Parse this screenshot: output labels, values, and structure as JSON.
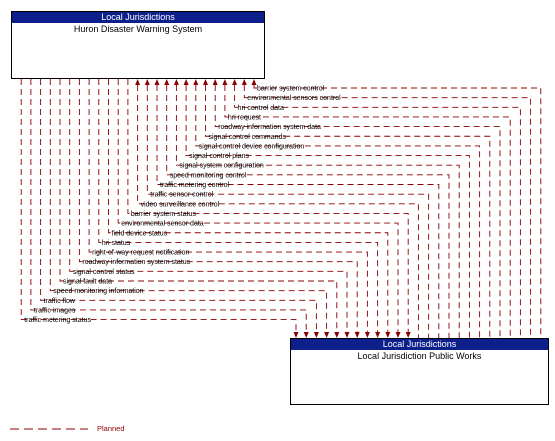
{
  "top_box": {
    "header": "Local Jurisdictions",
    "title": "Huron Disaster Warning System"
  },
  "bottom_box": {
    "header": "Local Jurisdictions",
    "title": "Local Jurisdiction Public Works"
  },
  "flows_to_top": [
    "barrier system control",
    "environmental sensors control",
    "hri control data",
    "hri request",
    "roadway information system data",
    "signal control commands",
    "signal control device configuration",
    "signal control plans",
    "signal system configuration",
    "speed monitoring control",
    "traffic metering control",
    "traffic sensor control",
    "video surveillance control"
  ],
  "flows_to_bottom": [
    "barrier system status",
    "environmental sensor data",
    "field device status",
    "hri status",
    "right-of-way request notification",
    "roadway information system status",
    "signal control status",
    "signal fault data",
    "speed monitoring information",
    "traffic flow",
    "traffic images",
    "traffic metering status"
  ],
  "legend": {
    "label": "Planned",
    "line_color": "#8b0000"
  },
  "colors": {
    "header_bg": "#0d1f8a",
    "flow_line": "#8b0000"
  }
}
